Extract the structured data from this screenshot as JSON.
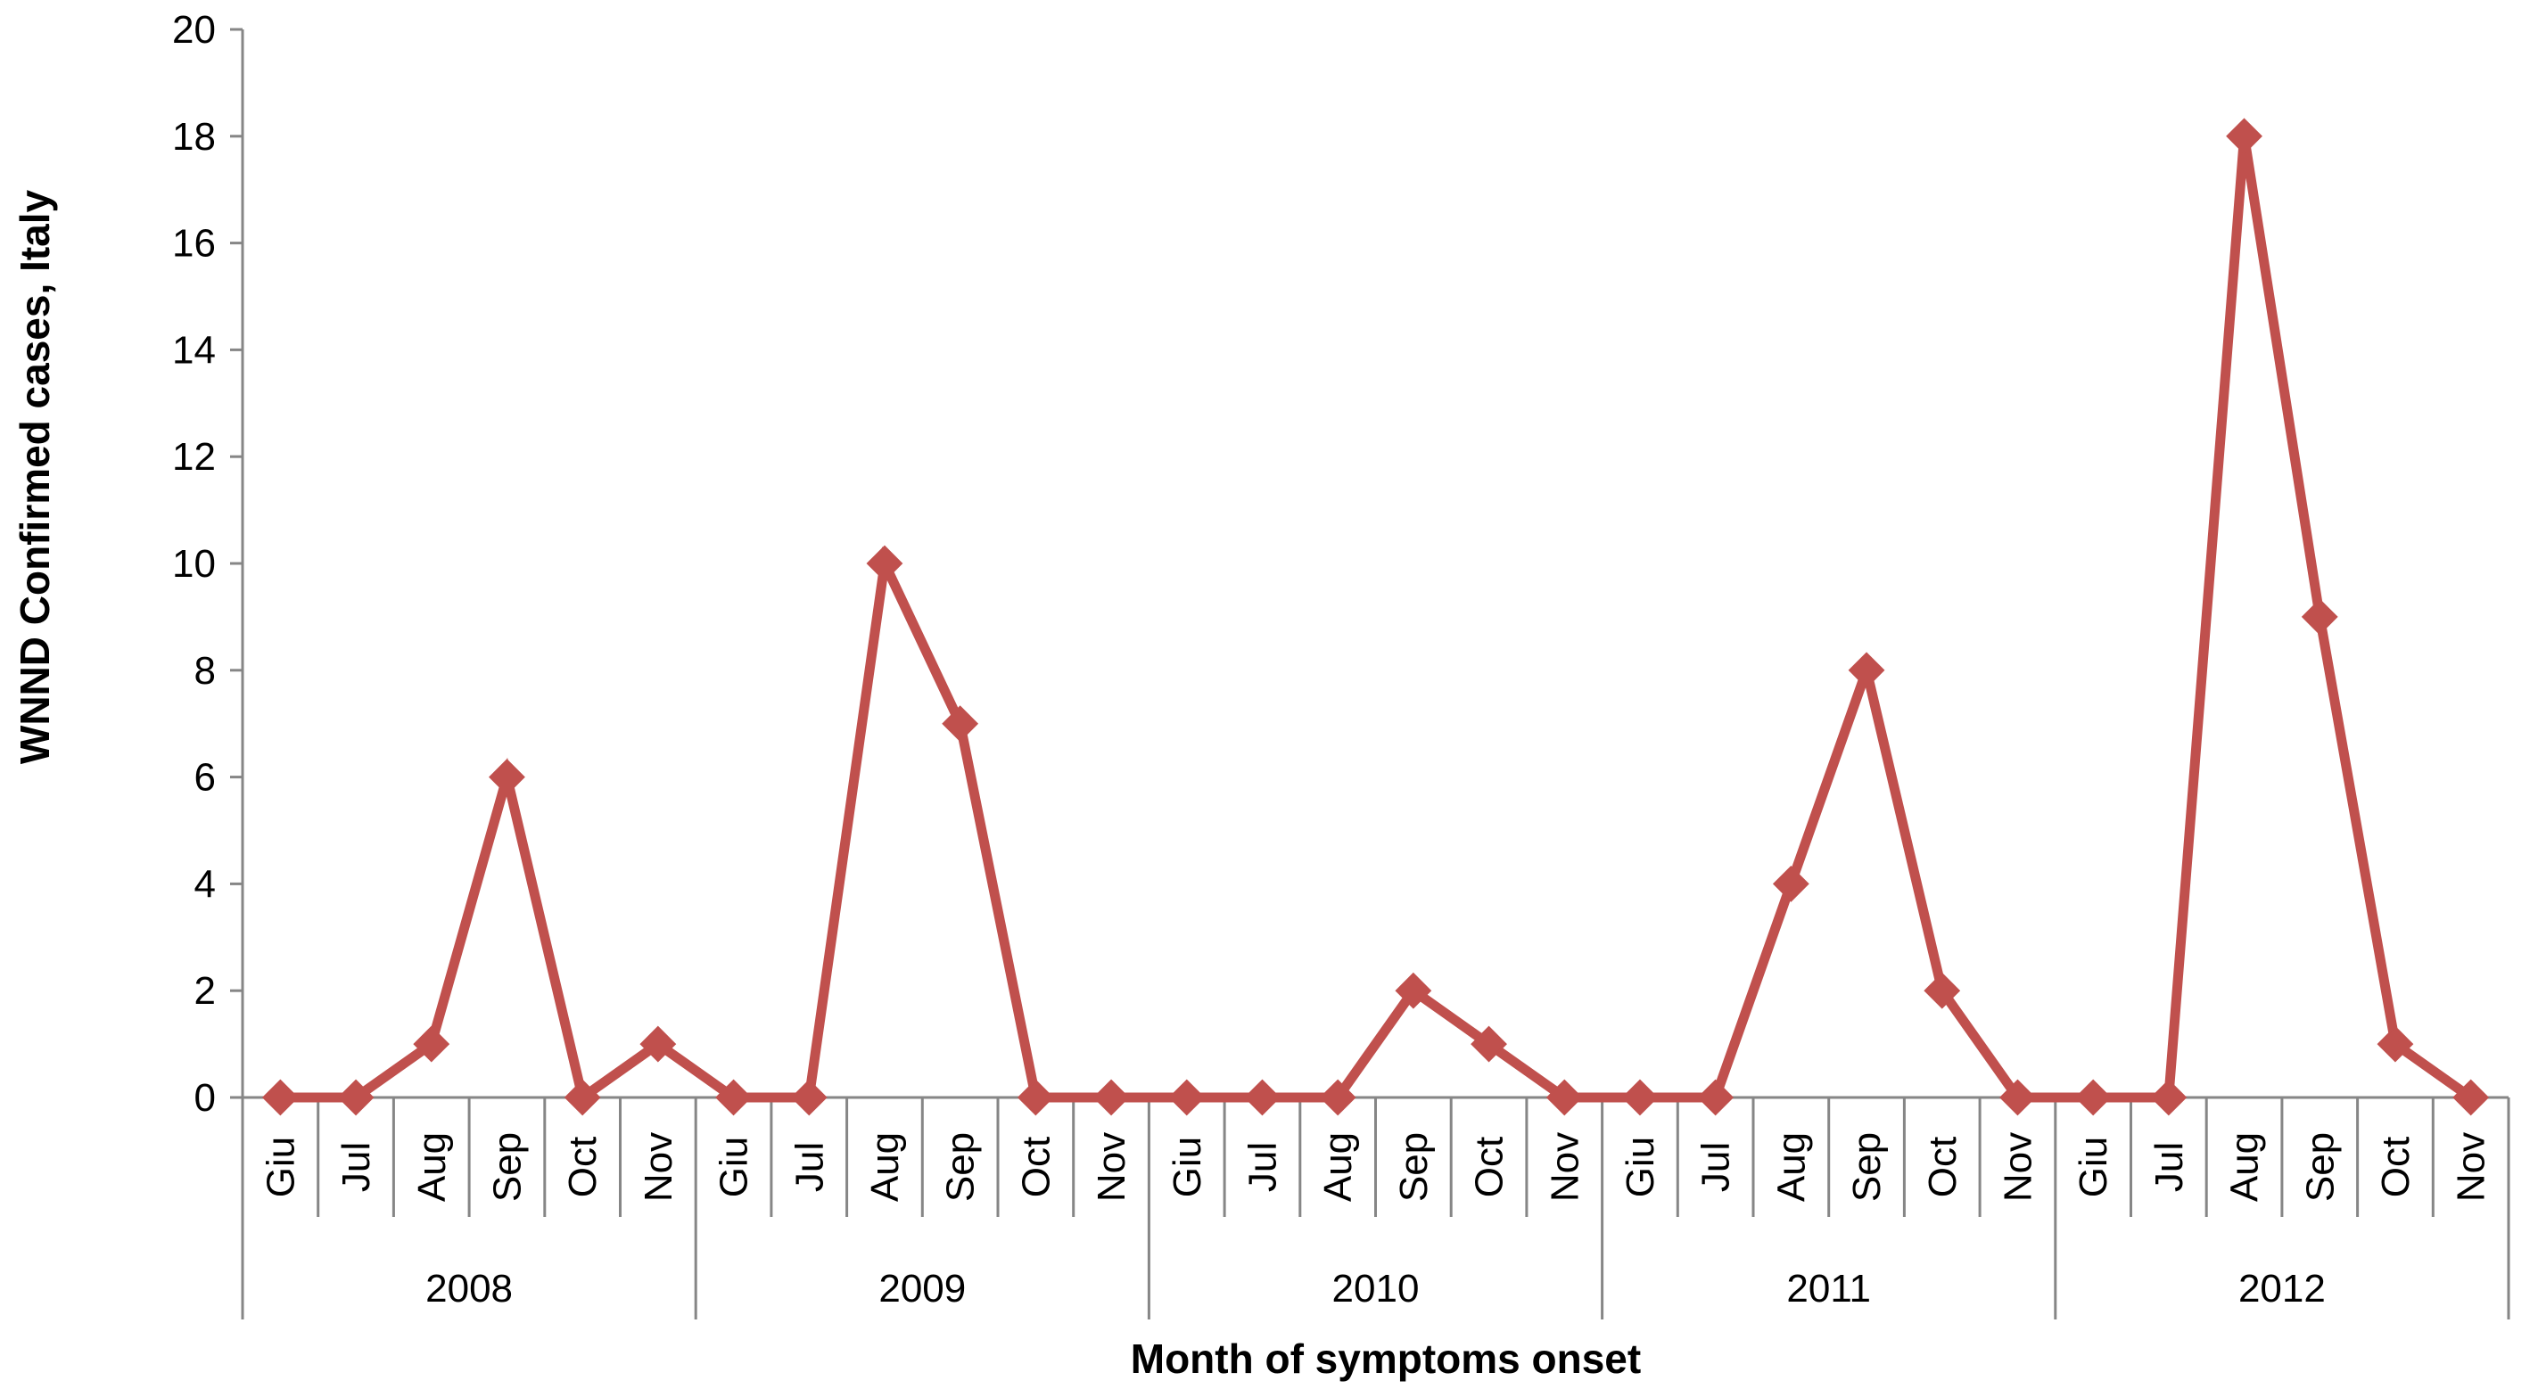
{
  "chart_data": {
    "type": "line",
    "title": "",
    "ylabel": "WNND Confirmed cases,  Italy",
    "xlabel": "Month of symptoms onset",
    "ylim": [
      0,
      20
    ],
    "y_ticks": [
      "0",
      "2",
      "4",
      "6",
      "8",
      "10",
      "12",
      "14",
      "16",
      "18",
      "20"
    ],
    "groups": [
      {
        "label": "2008",
        "months": [
          "Giu",
          "Jul",
          "Aug",
          "Sep",
          "Oct",
          "Nov"
        ]
      },
      {
        "label": "2009",
        "months": [
          "Giu",
          "Jul",
          "Aug",
          "Sep",
          "Oct",
          "Nov"
        ]
      },
      {
        "label": "2010",
        "months": [
          "Giu",
          "Jul",
          "Aug",
          "Sep",
          "Oct",
          "Nov"
        ]
      },
      {
        "label": "2011",
        "months": [
          "Giu",
          "Jul",
          "Aug",
          "Sep",
          "Oct",
          "Nov"
        ]
      },
      {
        "label": "2012",
        "months": [
          "Giu",
          "Jul",
          "Aug",
          "Sep",
          "Oct",
          "Nov"
        ]
      }
    ],
    "series": [
      {
        "values": [
          0,
          0,
          1,
          6,
          0,
          1,
          0,
          0,
          10,
          7,
          0,
          0,
          0,
          0,
          0,
          2,
          1,
          0,
          0,
          0,
          4,
          8,
          2,
          0,
          0,
          0,
          18,
          9,
          1,
          0
        ],
        "color": "#c0504d",
        "marker": "diamond"
      }
    ],
    "grid": false,
    "legend": "none"
  }
}
